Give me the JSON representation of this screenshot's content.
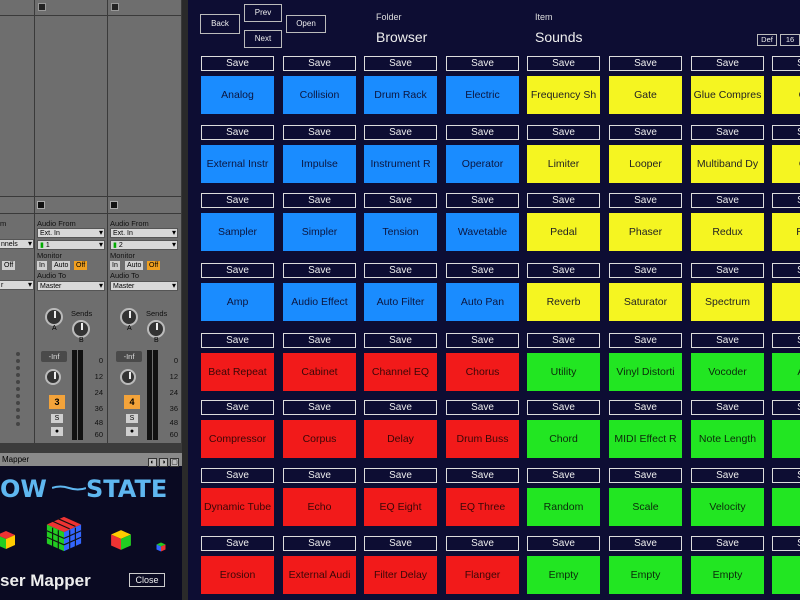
{
  "daw": {
    "track3": {
      "audio_from_label": "Audio From",
      "input_type": "Ext. In",
      "channel": "1",
      "monitor_label": "Monitor",
      "monitor_in": "In",
      "monitor_auto": "Auto",
      "monitor_off": "Off",
      "audio_to_label": "Audio To",
      "audio_to": "Master",
      "sends_label": "Sends",
      "send_a": "A",
      "send_b": "B",
      "volume": "-Inf",
      "number": "3",
      "solo": "S",
      "arm": "●"
    },
    "track4": {
      "audio_from_label": "Audio From",
      "input_type": "Ext. In",
      "channel": "2",
      "monitor_label": "Monitor",
      "monitor_in": "In",
      "monitor_auto": "Auto",
      "monitor_off": "Off",
      "audio_to_label": "Audio To",
      "audio_to": "Master",
      "sends_label": "Sends",
      "send_a": "A",
      "send_b": "B",
      "volume": "-Inf",
      "number": "4",
      "solo": "S",
      "arm": "●"
    },
    "partial_track": {
      "label_m": "m",
      "channels": "nnels",
      "off": "Off",
      "audio_to": "r"
    },
    "meter_scale": [
      "0",
      "12",
      "24",
      "36",
      "48",
      "60"
    ]
  },
  "mapper": {
    "header": "Mapper",
    "header_icons": [
      "◐",
      "◑",
      "▢"
    ],
    "logo_left": "OW",
    "logo_right": "STATE",
    "title": "ser Mapper",
    "close_label": "Close"
  },
  "browser": {
    "back": "Back",
    "prev": "Prev",
    "next": "Next",
    "open": "Open",
    "folder_label": "Folder",
    "folder_value": "Browser",
    "item_label": "Item",
    "item_value": "Sounds",
    "def_label": "Def",
    "count_label": "16",
    "save_label": "Save",
    "colors": {
      "blue": "#1a8cff",
      "yellow": "#f5f521",
      "red": "#f21a1a",
      "green": "#22e622"
    },
    "rows": [
      [
        {
          "label": "Analog",
          "color": "blue"
        },
        {
          "label": "Collision",
          "color": "blue"
        },
        {
          "label": "Drum Rack",
          "color": "blue"
        },
        {
          "label": "Electric",
          "color": "blue"
        },
        {
          "label": "Frequency Sh",
          "color": "yellow"
        },
        {
          "label": "Gate",
          "color": "yellow"
        },
        {
          "label": "Glue Compres",
          "color": "yellow"
        },
        {
          "label": "Grai",
          "color": "yellow"
        }
      ],
      [
        {
          "label": "External Instr",
          "color": "blue"
        },
        {
          "label": "Impulse",
          "color": "blue"
        },
        {
          "label": "Instrument R",
          "color": "blue"
        },
        {
          "label": "Operator",
          "color": "blue"
        },
        {
          "label": "Limiter",
          "color": "yellow"
        },
        {
          "label": "Looper",
          "color": "yellow"
        },
        {
          "label": "Multiband Dy",
          "color": "yellow"
        },
        {
          "label": "Ove",
          "color": "yellow"
        }
      ],
      [
        {
          "label": "Sampler",
          "color": "blue"
        },
        {
          "label": "Simpler",
          "color": "blue"
        },
        {
          "label": "Tension",
          "color": "blue"
        },
        {
          "label": "Wavetable",
          "color": "blue"
        },
        {
          "label": "Pedal",
          "color": "yellow"
        },
        {
          "label": "Phaser",
          "color": "yellow"
        },
        {
          "label": "Redux",
          "color": "yellow"
        },
        {
          "label": "Rese",
          "color": "yellow"
        }
      ],
      [
        {
          "label": "Amp",
          "color": "blue"
        },
        {
          "label": "Audio Effect",
          "color": "blue"
        },
        {
          "label": "Auto Filter",
          "color": "blue"
        },
        {
          "label": "Auto Pan",
          "color": "blue"
        },
        {
          "label": "Reverb",
          "color": "yellow"
        },
        {
          "label": "Saturator",
          "color": "yellow"
        },
        {
          "label": "Spectrum",
          "color": "yellow"
        },
        {
          "label": "T",
          "color": "yellow"
        }
      ],
      [
        {
          "label": "Beat Repeat",
          "color": "red"
        },
        {
          "label": "Cabinet",
          "color": "red"
        },
        {
          "label": "Channel EQ",
          "color": "red"
        },
        {
          "label": "Chorus",
          "color": "red"
        },
        {
          "label": "Utility",
          "color": "green"
        },
        {
          "label": "Vinyl Distorti",
          "color": "green"
        },
        {
          "label": "Vocoder",
          "color": "green"
        },
        {
          "label": "Arpe",
          "color": "green"
        }
      ],
      [
        {
          "label": "Compressor",
          "color": "red"
        },
        {
          "label": "Corpus",
          "color": "red"
        },
        {
          "label": "Delay",
          "color": "red"
        },
        {
          "label": "Drum Buss",
          "color": "red"
        },
        {
          "label": "Chord",
          "color": "green"
        },
        {
          "label": "MIDI Effect R",
          "color": "green"
        },
        {
          "label": "Note Length",
          "color": "green"
        },
        {
          "label": "P",
          "color": "green"
        }
      ],
      [
        {
          "label": "Dynamic Tube",
          "color": "red"
        },
        {
          "label": "Echo",
          "color": "red"
        },
        {
          "label": "EQ Eight",
          "color": "red"
        },
        {
          "label": "EQ Three",
          "color": "red"
        },
        {
          "label": "Random",
          "color": "green"
        },
        {
          "label": "Scale",
          "color": "green"
        },
        {
          "label": "Velocity",
          "color": "green"
        },
        {
          "label": "E",
          "color": "green"
        }
      ],
      [
        {
          "label": "Erosion",
          "color": "red"
        },
        {
          "label": "External Audi",
          "color": "red"
        },
        {
          "label": "Filter Delay",
          "color": "red"
        },
        {
          "label": "Flanger",
          "color": "red"
        },
        {
          "label": "Empty",
          "color": "green"
        },
        {
          "label": "Empty",
          "color": "green"
        },
        {
          "label": "Empty",
          "color": "green"
        },
        {
          "label": "E",
          "color": "green"
        }
      ]
    ]
  }
}
